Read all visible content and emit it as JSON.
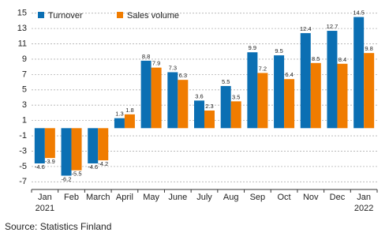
{
  "chart_data": {
    "type": "bar",
    "categories": [
      "Jan",
      "Feb",
      "March",
      "April",
      "May",
      "June",
      "July",
      "Aug",
      "Sep",
      "Oct",
      "Nov",
      "Dec",
      "Jan"
    ],
    "year_labels": [
      "2021",
      null,
      null,
      null,
      null,
      null,
      null,
      null,
      null,
      null,
      null,
      null,
      "2022"
    ],
    "series": [
      {
        "name": "Turnover",
        "color": "#0b6fb3",
        "values": [
          -4.6,
          -6.2,
          -4.6,
          1.3,
          8.8,
          7.3,
          3.6,
          5.5,
          9.9,
          9.5,
          12.4,
          12.7,
          14.5
        ]
      },
      {
        "name": "Sales volume",
        "color": "#f07c00",
        "values": [
          -3.9,
          -5.5,
          -4.2,
          1.8,
          7.9,
          6.3,
          2.3,
          3.5,
          7.2,
          6.4,
          8.5,
          8.4,
          9.8
        ]
      }
    ],
    "ylim": [
      -8,
      16
    ],
    "yticks": [
      -7,
      -5,
      -3,
      -1,
      1,
      3,
      5,
      7,
      9,
      11,
      13,
      15
    ],
    "grid": true,
    "legend": "top-left",
    "source": "Source: Statistics Finland"
  }
}
